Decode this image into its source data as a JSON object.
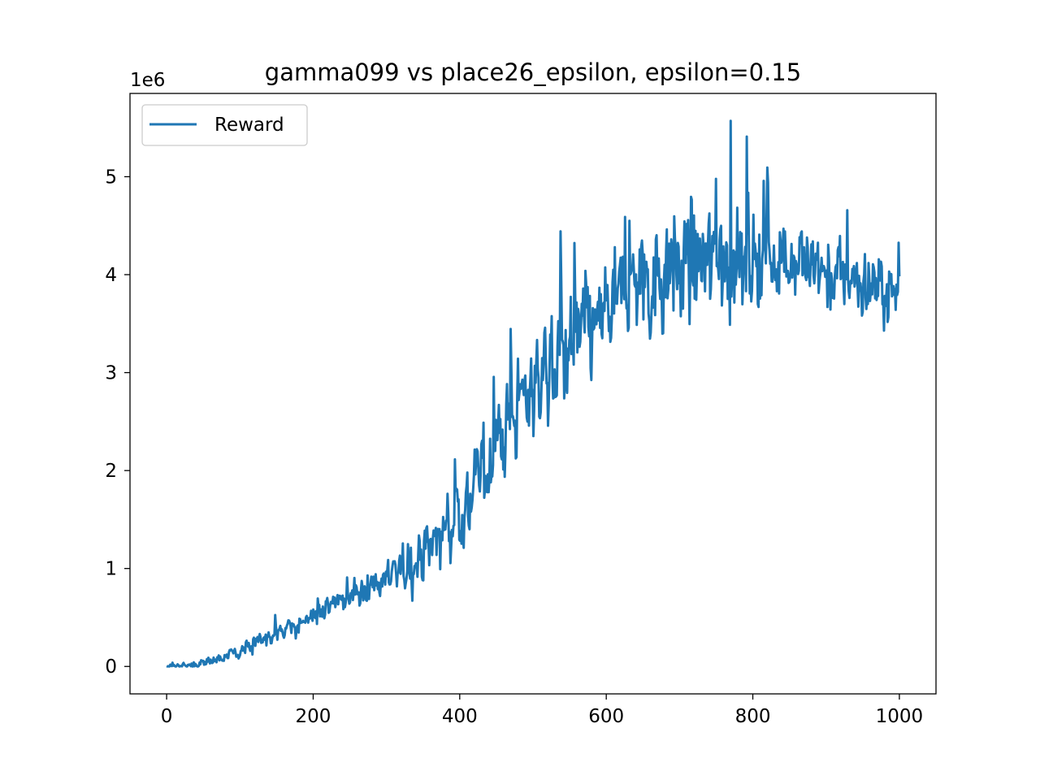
{
  "chart_data": {
    "type": "line",
    "title": "gamma099 vs place26_epsilon, epsilon=0.15",
    "xlabel": "",
    "ylabel": "",
    "y_scale_label": "1e6",
    "xlim": [
      -50,
      1050
    ],
    "ylim": [
      -0.28,
      5.85
    ],
    "xticks": [
      0,
      200,
      400,
      600,
      800,
      1000
    ],
    "xtick_labels": [
      "0",
      "200",
      "400",
      "600",
      "800",
      "1000"
    ],
    "yticks": [
      0,
      1,
      2,
      3,
      4,
      5
    ],
    "ytick_labels": [
      "0",
      "1",
      "2",
      "3",
      "4",
      "5"
    ],
    "grid": false,
    "legend": {
      "position": "top-left",
      "entries": [
        "Reward"
      ]
    },
    "series": [
      {
        "name": "Reward",
        "color": "#1f77b4",
        "x_start": 0,
        "x_end": 1000,
        "n_points": 1000,
        "y_units": "x 1e6",
        "trend_anchors_x": [
          0,
          50,
          100,
          150,
          200,
          250,
          300,
          350,
          400,
          450,
          500,
          550,
          600,
          650,
          700,
          750,
          800,
          850,
          900,
          950,
          1000
        ],
        "trend_anchors_y": [
          0.0,
          0.03,
          0.15,
          0.32,
          0.52,
          0.72,
          0.88,
          1.15,
          1.55,
          2.25,
          2.9,
          3.25,
          3.55,
          3.95,
          4.1,
          4.15,
          4.1,
          4.2,
          4.0,
          3.9,
          3.8
        ],
        "noise_anchors_x": [
          0,
          100,
          200,
          300,
          400,
          500,
          600,
          700,
          800,
          900,
          1000
        ],
        "noise_anchors_y": [
          0.01,
          0.04,
          0.07,
          0.12,
          0.28,
          0.35,
          0.35,
          0.42,
          0.35,
          0.28,
          0.2
        ],
        "max_value": 5.57,
        "max_at_x": 770
      }
    ]
  }
}
